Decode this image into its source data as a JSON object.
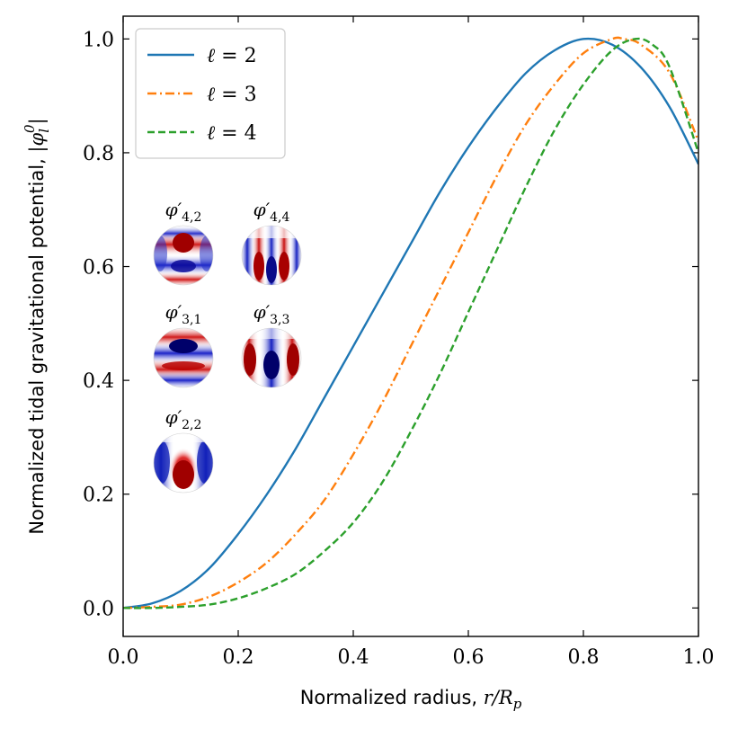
{
  "chart_data": {
    "type": "line",
    "title": "",
    "xlabel": "Normalized radius, r/R_p",
    "xlabel_text": "Normalized radius, ",
    "xlabel_math": "r/R",
    "xlabel_sub": "p",
    "ylabel": "Normalized tidal gravitational potential, |φ_l^0|",
    "ylabel_text": "Normalized tidal gravitational potential, ",
    "ylabel_math": "|φ",
    "ylabel_sub": "l",
    "ylabel_sup": "0",
    "ylabel_close": "|",
    "xlim": [
      0.0,
      1.0
    ],
    "ylim": [
      -0.05,
      1.04
    ],
    "xticks": [
      0.0,
      0.2,
      0.4,
      0.6,
      0.8,
      1.0
    ],
    "xtick_labels": [
      "0.0",
      "0.2",
      "0.4",
      "0.6",
      "0.8",
      "1.0"
    ],
    "yticks": [
      0.0,
      0.2,
      0.4,
      0.6,
      0.8,
      1.0
    ],
    "ytick_labels": [
      "0.0",
      "0.2",
      "0.4",
      "0.6",
      "0.8",
      "1.0"
    ],
    "grid": false,
    "legend_position": "top-left",
    "series": [
      {
        "name": "ℓ = 2",
        "name_ell": "ℓ",
        "name_rest": " = 2",
        "color": "#1f77b4",
        "style": "solid",
        "x": [
          0.0,
          0.05,
          0.1,
          0.15,
          0.2,
          0.25,
          0.3,
          0.35,
          0.4,
          0.45,
          0.5,
          0.55,
          0.6,
          0.65,
          0.7,
          0.75,
          0.8,
          0.85,
          0.9,
          0.95,
          1.0
        ],
        "y": [
          0.0,
          0.008,
          0.03,
          0.07,
          0.13,
          0.2,
          0.28,
          0.37,
          0.46,
          0.55,
          0.64,
          0.73,
          0.81,
          0.88,
          0.94,
          0.98,
          1.0,
          0.99,
          0.95,
          0.88,
          0.78
        ]
      },
      {
        "name": "ℓ = 3",
        "name_ell": "ℓ",
        "name_rest": " = 3",
        "color": "#ff7f0e",
        "style": "dashdot",
        "x": [
          0.0,
          0.05,
          0.1,
          0.15,
          0.2,
          0.25,
          0.3,
          0.35,
          0.4,
          0.45,
          0.5,
          0.55,
          0.6,
          0.65,
          0.7,
          0.75,
          0.8,
          0.85,
          0.87,
          0.9,
          0.95,
          1.0
        ],
        "y": [
          0.0,
          0.002,
          0.006,
          0.02,
          0.045,
          0.08,
          0.13,
          0.19,
          0.27,
          0.36,
          0.46,
          0.56,
          0.66,
          0.76,
          0.85,
          0.92,
          0.975,
          1.0,
          1.0,
          0.99,
          0.94,
          0.82
        ]
      },
      {
        "name": "ℓ = 4",
        "name_ell": "ℓ",
        "name_rest": " = 4",
        "color": "#2ca02c",
        "style": "dashed",
        "x": [
          0.0,
          0.05,
          0.1,
          0.15,
          0.2,
          0.25,
          0.3,
          0.35,
          0.4,
          0.45,
          0.5,
          0.55,
          0.6,
          0.65,
          0.7,
          0.75,
          0.8,
          0.85,
          0.89,
          0.92,
          0.95,
          1.0
        ],
        "y": [
          0.0,
          0.0,
          0.002,
          0.006,
          0.017,
          0.035,
          0.06,
          0.1,
          0.15,
          0.22,
          0.31,
          0.41,
          0.52,
          0.63,
          0.74,
          0.84,
          0.92,
          0.98,
          1.0,
          0.99,
          0.95,
          0.8
        ]
      }
    ],
    "insets": [
      {
        "base": "φ′",
        "sub": "4,2",
        "pattern": "4-2"
      },
      {
        "base": "φ′",
        "sub": "4,4",
        "pattern": "4-4"
      },
      {
        "base": "φ′",
        "sub": "3,1",
        "pattern": "3-1"
      },
      {
        "base": "φ′",
        "sub": "3,3",
        "pattern": "3-3"
      },
      {
        "base": "φ′",
        "sub": "2,2",
        "pattern": "2-2"
      }
    ]
  }
}
